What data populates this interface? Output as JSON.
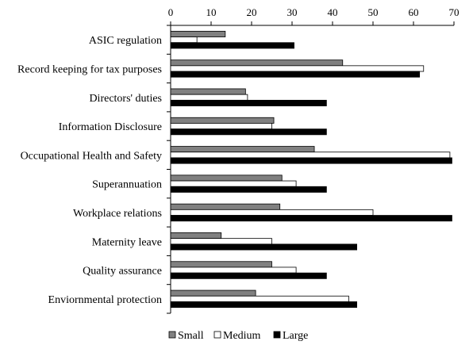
{
  "chart_data": {
    "type": "bar",
    "orientation": "horizontal",
    "title": "",
    "xlabel": "",
    "ylabel": "",
    "xlim": [
      0,
      70
    ],
    "x_ticks": [
      "0",
      "10",
      "20",
      "30",
      "40",
      "50",
      "60",
      "70"
    ],
    "x_axis_position": "top",
    "grid": false,
    "legend_position": "bottom",
    "categories": [
      "ASIC regulation",
      "Record keeping for tax purposes",
      "Directors' duties",
      "Information Disclosure",
      "Occupational Health and Safety",
      "Superannuation",
      "Workplace relations",
      "Maternity leave",
      "Quality assurance",
      "Enviornmental protection"
    ],
    "series": [
      {
        "name": "Small",
        "color": "#808080",
        "values": [
          13.5,
          42.5,
          18.5,
          25.5,
          35.5,
          27.5,
          27.0,
          12.5,
          25.0,
          21.0
        ]
      },
      {
        "name": "Medium",
        "color": "#ffffff",
        "values": [
          6.5,
          62.5,
          19.0,
          25.0,
          69.0,
          31.0,
          50.0,
          25.0,
          31.0,
          44.0
        ]
      },
      {
        "name": "Large",
        "color": "#000000",
        "values": [
          30.5,
          61.5,
          38.5,
          38.5,
          69.5,
          38.5,
          69.5,
          46.0,
          38.5,
          46.0
        ]
      }
    ]
  }
}
